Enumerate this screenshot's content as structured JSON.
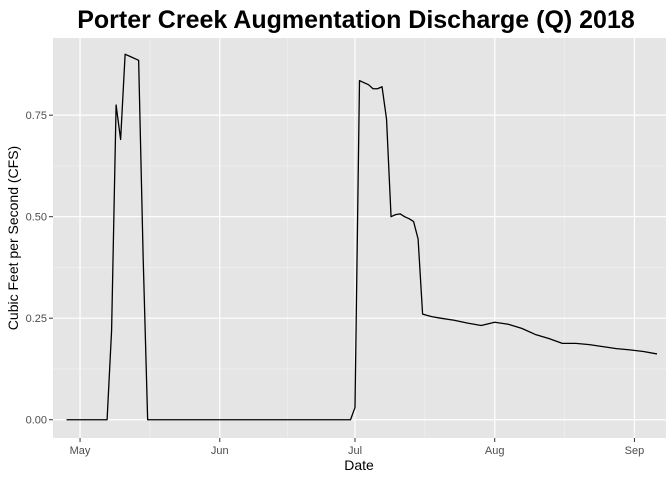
{
  "chart_data": {
    "type": "line",
    "title": "Porter Creek Augmentation Discharge (Q) 2018",
    "xlabel": "Date",
    "ylabel": "Cubic Feet per Second (CFS)",
    "xlim": [
      "2018-04-25",
      "2018-09-08"
    ],
    "ylim": [
      -0.045,
      0.94
    ],
    "x_ticks": [
      {
        "date": "2018-05-01",
        "label": "May"
      },
      {
        "date": "2018-06-01",
        "label": "Jun"
      },
      {
        "date": "2018-07-01",
        "label": "Jul"
      },
      {
        "date": "2018-08-01",
        "label": "Aug"
      },
      {
        "date": "2018-09-01",
        "label": "Sep"
      }
    ],
    "y_ticks": [
      {
        "value": 0.0,
        "label": "0.00"
      },
      {
        "value": 0.25,
        "label": "0.25"
      },
      {
        "value": 0.5,
        "label": "0.50"
      },
      {
        "value": 0.75,
        "label": "0.75"
      }
    ],
    "grid": true,
    "colors": {
      "line": "#000000",
      "panel": "#e5e5e5",
      "grid": "#ffffff"
    },
    "series": [
      {
        "x": [
          "2018-04-28",
          "2018-05-01",
          "2018-05-04",
          "2018-05-07",
          "2018-05-08",
          "2018-05-09",
          "2018-05-10",
          "2018-05-11",
          "2018-05-12",
          "2018-05-14",
          "2018-05-15",
          "2018-05-16",
          "2018-05-20",
          "2018-05-25",
          "2018-06-01",
          "2018-06-10",
          "2018-06-20",
          "2018-06-29",
          "2018-06-30",
          "2018-07-01",
          "2018-07-02",
          "2018-07-03",
          "2018-07-04",
          "2018-07-05",
          "2018-07-06",
          "2018-07-07",
          "2018-07-08",
          "2018-07-09",
          "2018-07-10",
          "2018-07-11",
          "2018-07-12",
          "2018-07-13",
          "2018-07-14",
          "2018-07-15",
          "2018-07-16",
          "2018-07-17",
          "2018-07-18",
          "2018-07-20",
          "2018-07-23",
          "2018-07-26",
          "2018-07-29",
          "2018-08-01",
          "2018-08-04",
          "2018-08-07",
          "2018-08-10",
          "2018-08-13",
          "2018-08-16",
          "2018-08-19",
          "2018-08-22",
          "2018-08-25",
          "2018-08-28",
          "2018-08-31",
          "2018-09-03",
          "2018-09-06"
        ],
        "y": [
          0.0,
          0.0,
          0.0,
          0.0,
          0.22,
          0.775,
          0.69,
          0.9,
          0.895,
          0.885,
          0.4,
          0.0,
          0.0,
          0.0,
          0.0,
          0.0,
          0.0,
          0.0,
          0.0,
          0.03,
          0.835,
          0.83,
          0.825,
          0.815,
          0.815,
          0.82,
          0.74,
          0.5,
          0.505,
          0.507,
          0.5,
          0.495,
          0.488,
          0.445,
          0.26,
          0.257,
          0.254,
          0.25,
          0.245,
          0.238,
          0.232,
          0.24,
          0.235,
          0.225,
          0.21,
          0.2,
          0.188,
          0.188,
          0.185,
          0.18,
          0.175,
          0.172,
          0.168,
          0.162
        ]
      }
    ]
  }
}
